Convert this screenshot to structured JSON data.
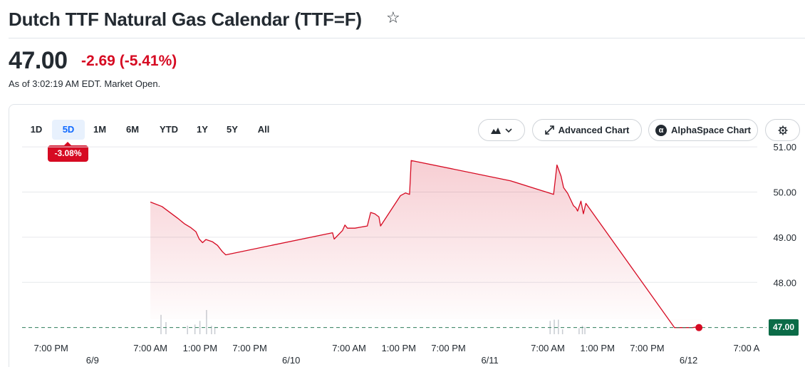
{
  "header": {
    "title": "Dutch TTF Natural Gas Calendar (TTF=F)",
    "star_icon": "star-outline-icon"
  },
  "quote": {
    "price": "47.00",
    "change": "-2.69",
    "change_pct": "(-5.41%)",
    "as_of": "As of 3:02:19 AM EDT. Market Open.",
    "down_color": "#d60a22"
  },
  "toolbar": {
    "ranges": [
      "1D",
      "5D",
      "1M",
      "6M",
      "YTD",
      "1Y",
      "5Y",
      "All"
    ],
    "active_range": "5D",
    "range_change": "-3.08%",
    "chart_type_icon": "mountain-chart-icon",
    "advanced_chart": "Advanced Chart",
    "alphaspace_chart": "AlphaSpace Chart",
    "settings_icon": "gear-icon"
  },
  "chart_data": {
    "type": "area",
    "y_ticks": [
      "51.00",
      "50.00",
      "49.00",
      "48.00"
    ],
    "ylim": [
      46.9,
      51.05
    ],
    "last_value": "47.00",
    "reference_line": 47.0,
    "line_color": "#d60a22",
    "last_label_color": "#0b6b47",
    "time_ticks": [
      {
        "label": "7:00 PM",
        "t": 3.5
      },
      {
        "label": "7:00 AM",
        "t": 15.5
      },
      {
        "label": "1:00 PM",
        "t": 21.5
      },
      {
        "label": "7:00 PM",
        "t": 27.5
      },
      {
        "label": "7:00 AM",
        "t": 39.5
      },
      {
        "label": "1:00 PM",
        "t": 45.5
      },
      {
        "label": "7:00 PM",
        "t": 51.5
      },
      {
        "label": "7:00 AM",
        "t": 63.5
      },
      {
        "label": "1:00 PM",
        "t": 69.5
      },
      {
        "label": "7:00 PM",
        "t": 75.5
      },
      {
        "label": "7:00 A",
        "t": 87.5
      }
    ],
    "date_ticks": [
      {
        "label": "6/9",
        "t": 8.5
      },
      {
        "label": "6/10",
        "t": 32.5
      },
      {
        "label": "6/11",
        "t": 56.5
      },
      {
        "label": "6/12",
        "t": 80.5
      }
    ],
    "series": [
      {
        "points": [
          [
            15.5,
            49.78
          ],
          [
            16.9,
            49.68
          ],
          [
            18.8,
            49.42
          ],
          [
            19.6,
            49.3
          ],
          [
            20.4,
            49.21
          ],
          [
            21.0,
            49.12
          ],
          [
            21.4,
            48.96
          ],
          [
            21.8,
            48.88
          ],
          [
            22.2,
            48.95
          ],
          [
            23.0,
            48.9
          ],
          [
            23.6,
            48.82
          ],
          [
            24.2,
            48.68
          ],
          [
            24.6,
            48.61
          ],
          [
            37.5,
            49.1
          ],
          [
            37.7,
            48.96
          ],
          [
            38.7,
            49.15
          ],
          [
            39.0,
            49.27
          ],
          [
            39.3,
            49.2
          ],
          [
            40.2,
            49.2
          ],
          [
            41.7,
            49.25
          ],
          [
            42.1,
            49.55
          ],
          [
            42.6,
            49.52
          ],
          [
            43.1,
            49.45
          ],
          [
            43.3,
            49.25
          ],
          [
            45.7,
            49.92
          ],
          [
            46.3,
            49.98
          ],
          [
            46.8,
            49.95
          ],
          [
            47.0,
            50.7
          ],
          [
            59.0,
            50.25
          ],
          [
            64.2,
            49.95
          ],
          [
            64.6,
            50.6
          ],
          [
            65.1,
            50.35
          ],
          [
            65.4,
            50.1
          ],
          [
            65.9,
            49.97
          ],
          [
            66.6,
            49.7
          ],
          [
            66.9,
            49.65
          ],
          [
            67.1,
            49.58
          ],
          [
            67.5,
            49.8
          ],
          [
            67.8,
            49.52
          ],
          [
            68.1,
            49.75
          ],
          [
            78.8,
            47.0
          ],
          [
            81.0,
            47.0
          ],
          [
            81.8,
            47.02
          ],
          [
            82.1,
            47.0
          ]
        ]
      }
    ],
    "volume": [
      [
        16.8,
        0.8
      ],
      [
        17.4,
        0.5
      ],
      [
        20.0,
        0.35
      ],
      [
        20.9,
        0.4
      ],
      [
        21.5,
        0.55
      ],
      [
        22.3,
        1.0
      ],
      [
        22.9,
        0.35
      ],
      [
        23.3,
        0.3
      ],
      [
        63.8,
        0.55
      ],
      [
        64.3,
        0.6
      ],
      [
        64.8,
        0.6
      ],
      [
        65.3,
        0.2
      ],
      [
        67.3,
        0.25
      ],
      [
        67.7,
        0.35
      ],
      [
        68.0,
        0.3
      ]
    ]
  }
}
